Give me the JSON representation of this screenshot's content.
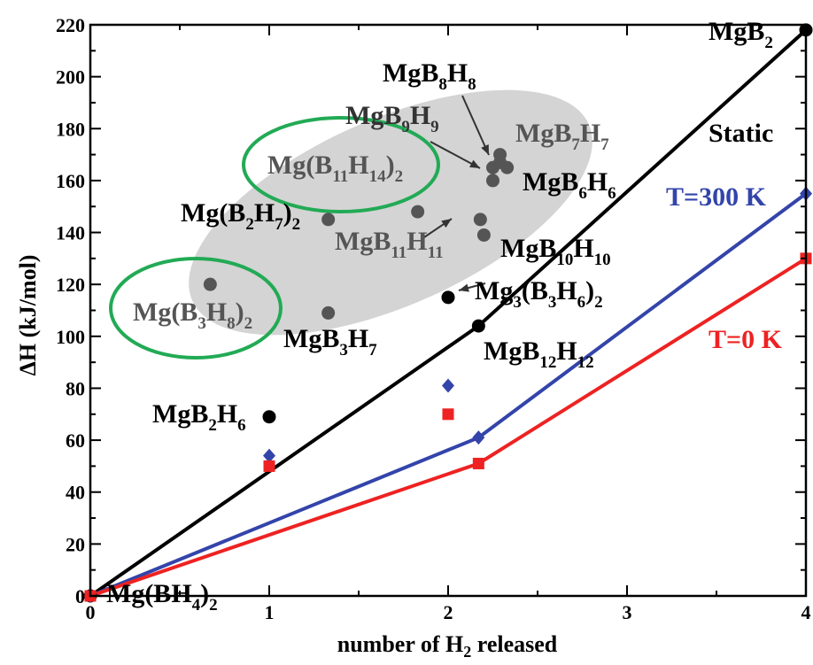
{
  "chart_data": {
    "type": "scatter",
    "xlabel": "number of H",
    "xlabel_sub": "2",
    "xlabel_tail": " released",
    "ylabel": "ΔH (kJ/mol)",
    "xlim": [
      0,
      4
    ],
    "ylim": [
      0,
      220
    ],
    "x_ticks": [
      0,
      1,
      2,
      3,
      4
    ],
    "y_ticks": [
      0,
      20,
      40,
      60,
      80,
      100,
      120,
      140,
      160,
      180,
      200,
      220
    ],
    "grid": false,
    "series": [
      {
        "name": "Static",
        "color": "#000000",
        "marker": "circle",
        "line": true,
        "points": [
          [
            0,
            0
          ],
          [
            2.17,
            104
          ],
          [
            4,
            218
          ]
        ]
      },
      {
        "name": "T=300 K",
        "color": "#3344aa",
        "marker": "diamond",
        "line": true,
        "points": [
          [
            0,
            0
          ],
          [
            2.17,
            61
          ],
          [
            4,
            155
          ]
        ]
      },
      {
        "name": "T=0 K",
        "color": "#ee2222",
        "marker": "square",
        "line": true,
        "points": [
          [
            0,
            0
          ],
          [
            2.17,
            51
          ],
          [
            4,
            130
          ]
        ]
      }
    ],
    "extra_points": [
      {
        "x": 1,
        "y": 69,
        "color": "#000000",
        "marker": "circle"
      },
      {
        "x": 2,
        "y": 115,
        "color": "#000000",
        "marker": "circle"
      },
      {
        "x": 1,
        "y": 54,
        "color": "#3344aa",
        "marker": "diamond"
      },
      {
        "x": 1,
        "y": 50,
        "color": "#ee2222",
        "marker": "square"
      },
      {
        "x": 2,
        "y": 81,
        "color": "#3344aa",
        "marker": "diamond"
      },
      {
        "x": 2,
        "y": 70,
        "color": "#ee2222",
        "marker": "square"
      },
      {
        "x": 0.67,
        "y": 120,
        "color": "#555555",
        "marker": "circle"
      },
      {
        "x": 1.33,
        "y": 145,
        "color": "#555555",
        "marker": "circle"
      },
      {
        "x": 1.33,
        "y": 109,
        "color": "#555555",
        "marker": "circle"
      },
      {
        "x": 1.83,
        "y": 148,
        "color": "#555555",
        "marker": "circle"
      },
      {
        "x": 2.18,
        "y": 145,
        "color": "#555555",
        "marker": "circle"
      },
      {
        "x": 2.2,
        "y": 139,
        "color": "#555555",
        "marker": "circle"
      },
      {
        "x": 2.25,
        "y": 160,
        "color": "#555555",
        "marker": "circle"
      },
      {
        "x": 2.25,
        "y": 165,
        "color": "#555555",
        "marker": "circle"
      },
      {
        "x": 2.29,
        "y": 167,
        "color": "#555555",
        "marker": "circle"
      },
      {
        "x": 2.29,
        "y": 170,
        "color": "#555555",
        "marker": "circle"
      },
      {
        "x": 2.33,
        "y": 165,
        "color": "#555555",
        "marker": "circle"
      }
    ],
    "annotations": [
      {
        "parts": [
          [
            "MgB",
            ""
          ],
          [
            "2",
            "sub"
          ]
        ],
        "color": "#000000"
      },
      {
        "parts": [
          [
            "Static",
            ""
          ]
        ],
        "color": "#000000"
      },
      {
        "parts": [
          [
            "T=300 K",
            ""
          ]
        ],
        "color": "#3344aa"
      },
      {
        "parts": [
          [
            "T=0 K",
            ""
          ]
        ],
        "color": "#ee2222"
      },
      {
        "parts": [
          [
            "MgB",
            ""
          ],
          [
            "8",
            "sub"
          ],
          [
            "H",
            ""
          ],
          [
            "8",
            "sub"
          ]
        ],
        "color": "#000000"
      },
      {
        "parts": [
          [
            "MgB",
            ""
          ],
          [
            "9",
            "sub"
          ],
          [
            "H",
            ""
          ],
          [
            "9",
            "sub"
          ]
        ],
        "color": "#333333"
      },
      {
        "parts": [
          [
            "MgB",
            ""
          ],
          [
            "7",
            "sub"
          ],
          [
            "H",
            ""
          ],
          [
            "7",
            "sub"
          ]
        ],
        "color": "#555555"
      },
      {
        "parts": [
          [
            "Mg(B",
            ""
          ],
          [
            "11",
            "sub"
          ],
          [
            "H",
            ""
          ],
          [
            "14",
            "sub"
          ],
          [
            ")",
            ""
          ],
          [
            "2",
            "sub"
          ]
        ],
        "color": "#555555"
      },
      {
        "parts": [
          [
            "MgB",
            ""
          ],
          [
            "6",
            "sub"
          ],
          [
            "H",
            ""
          ],
          [
            "6",
            "sub"
          ]
        ],
        "color": "#000000"
      },
      {
        "parts": [
          [
            "Mg(B",
            ""
          ],
          [
            "2",
            "sub"
          ],
          [
            "H",
            ""
          ],
          [
            "7",
            "sub"
          ],
          [
            ")",
            ""
          ],
          [
            "2",
            "sub"
          ]
        ],
        "color": "#000000"
      },
      {
        "parts": [
          [
            "MgB",
            ""
          ],
          [
            "11",
            "sub"
          ],
          [
            "H",
            ""
          ],
          [
            "11",
            "sub"
          ]
        ],
        "color": "#555555"
      },
      {
        "parts": [
          [
            "MgB",
            ""
          ],
          [
            "10",
            "sub"
          ],
          [
            "H",
            ""
          ],
          [
            "10",
            "sub"
          ]
        ],
        "color": "#000000"
      },
      {
        "parts": [
          [
            "Mg(B",
            ""
          ],
          [
            "3",
            "sub"
          ],
          [
            "H",
            ""
          ],
          [
            "8",
            "sub"
          ],
          [
            ")",
            ""
          ],
          [
            "2",
            "sub"
          ]
        ],
        "color": "#555555"
      },
      {
        "parts": [
          [
            "Mg",
            ""
          ],
          [
            "3",
            "sub"
          ],
          [
            "(B",
            ""
          ],
          [
            "3",
            "sub"
          ],
          [
            "H",
            ""
          ],
          [
            "6",
            "sub"
          ],
          [
            ")",
            ""
          ],
          [
            "2",
            "sub"
          ]
        ],
        "color": "#000000"
      },
      {
        "parts": [
          [
            "MgB",
            ""
          ],
          [
            "3",
            "sub"
          ],
          [
            "H",
            ""
          ],
          [
            "7",
            "sub"
          ]
        ],
        "color": "#000000"
      },
      {
        "parts": [
          [
            "MgB",
            ""
          ],
          [
            "12",
            "sub"
          ],
          [
            "H",
            ""
          ],
          [
            "12",
            "sub"
          ]
        ],
        "color": "#000000"
      },
      {
        "parts": [
          [
            "MgB",
            ""
          ],
          [
            "2",
            "sub"
          ],
          [
            "H",
            ""
          ],
          [
            "6",
            "sub"
          ]
        ],
        "color": "#000000"
      },
      {
        "parts": [
          [
            "Mg(BH",
            ""
          ],
          [
            "4",
            "sub"
          ],
          [
            ")",
            ""
          ],
          [
            "2",
            "sub"
          ]
        ],
        "color": "#000000"
      }
    ],
    "highlight_color": "#22aa55",
    "cluster_shade": "#d4d4d4"
  }
}
